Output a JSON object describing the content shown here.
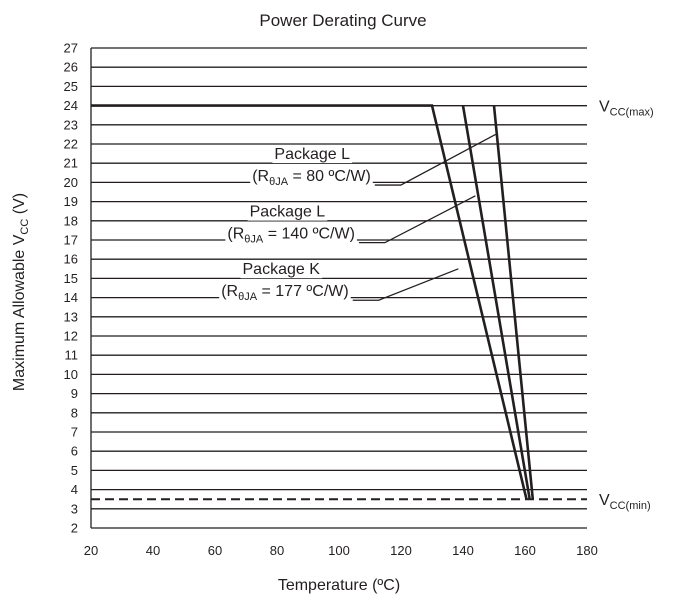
{
  "chart_data": {
    "type": "line",
    "title": "Power Derating Curve",
    "xlabel": "Temperature (ºC)",
    "ylabel": {
      "main": "Maximum Allowable V",
      "sub": "CC",
      "unit": " (V)"
    },
    "xlim": [
      20,
      180
    ],
    "ylim": [
      2,
      27
    ],
    "x_ticks": [
      20,
      40,
      60,
      80,
      100,
      120,
      140,
      160,
      180
    ],
    "y_ticks": [
      2,
      3,
      4,
      5,
      6,
      7,
      8,
      9,
      10,
      11,
      12,
      13,
      14,
      15,
      16,
      17,
      18,
      19,
      20,
      21,
      22,
      23,
      24,
      25,
      26,
      27
    ],
    "grid": {
      "horizontal": true,
      "vertical": false
    },
    "series": [
      {
        "values": [
          {
            "x": 20,
            "y": 24
          },
          {
            "x": 130,
            "y": 24
          },
          {
            "x": 160.5,
            "y": 3.5
          }
        ]
      },
      {
        "values": [
          {
            "x": 140,
            "y": 24
          },
          {
            "x": 161.5,
            "y": 3.5
          }
        ]
      },
      {
        "values": [
          {
            "x": 150,
            "y": 24
          },
          {
            "x": 162.5,
            "y": 3.5
          }
        ]
      }
    ],
    "reference_lines": [
      {
        "y": 24,
        "label": {
          "main": "V",
          "sub": "CC(max)"
        },
        "style": "solid"
      },
      {
        "y": 3.5,
        "label": {
          "main": "V",
          "sub": "CC(min)"
        },
        "style": "dashed"
      }
    ],
    "annotations": [
      {
        "line1": "Package L",
        "line2": {
          "open": "(R",
          "sub": "θJA",
          "rest": " = 80 ºC/W)"
        },
        "anchor_x": 72,
        "anchor_y": 20.8,
        "target_x": 150.5,
        "target_y": 22.5
      },
      {
        "line1": "Package L",
        "line2": {
          "open": "(R",
          "sub": "θJA",
          "rest": " = 140 ºC/W)"
        },
        "anchor_x": 64,
        "anchor_y": 17.8,
        "target_x": 144,
        "target_y": 19.3
      },
      {
        "line1": "Package K",
        "line2": {
          "open": "(R",
          "sub": "θJA",
          "rest": " = 177 ºC/W)"
        },
        "anchor_x": 62,
        "anchor_y": 14.8,
        "target_x": 138.5,
        "target_y": 15.5
      }
    ]
  }
}
